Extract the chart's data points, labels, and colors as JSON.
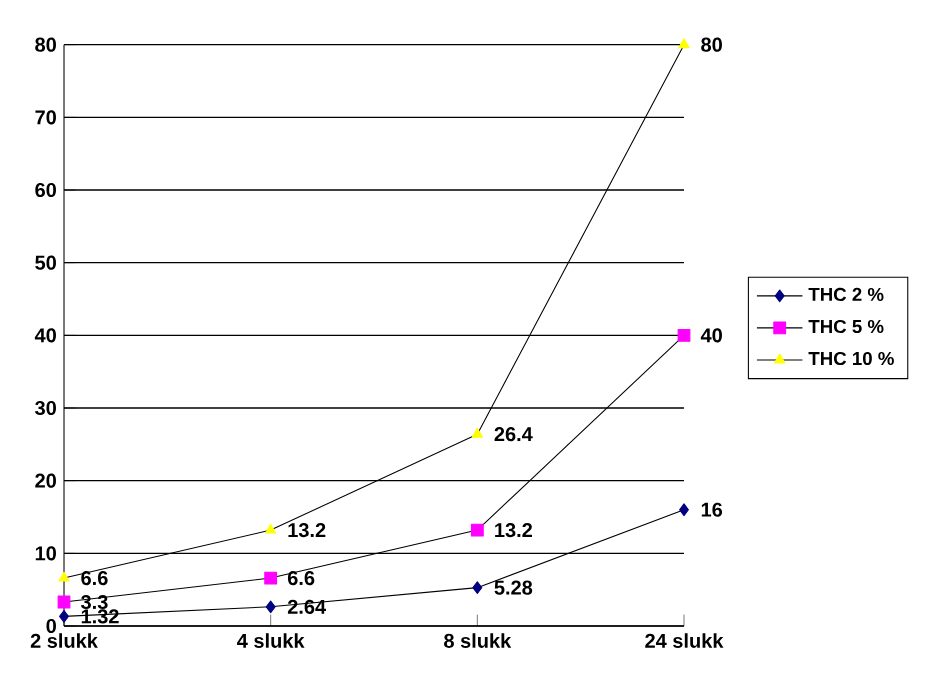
{
  "chart_data": {
    "type": "line",
    "categories": [
      "2 slukk",
      "4 slukk",
      "8 slukk",
      "24 slukk"
    ],
    "series": [
      {
        "name": "THC 2 %",
        "color": "#000080",
        "values": [
          1.32,
          2.64,
          5.28,
          16
        ],
        "marker": "diamond"
      },
      {
        "name": "THC 5 %",
        "color": "#ff00ff",
        "values": [
          3.3,
          6.6,
          13.2,
          40
        ],
        "marker": "square"
      },
      {
        "name": "THC 10 %",
        "color": "#ffff00",
        "values": [
          6.6,
          13.2,
          26.4,
          80
        ],
        "marker": "triangle"
      }
    ],
    "ylim": [
      0,
      80
    ],
    "yticks": [
      0,
      10,
      20,
      30,
      40,
      50,
      60,
      70,
      80
    ],
    "grid": "y",
    "legend": "right",
    "data_labels": true
  }
}
